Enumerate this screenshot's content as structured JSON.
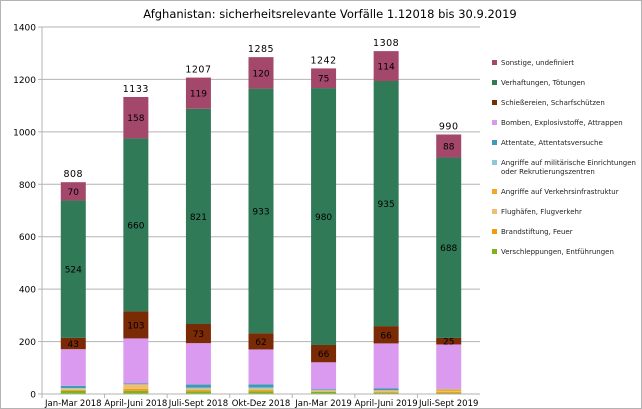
{
  "chart_data": {
    "type": "bar",
    "stacked": true,
    "title": "Afghanistan: sicherheitsrelevante Vorfälle 1.12018 bis 30.9.2019",
    "xlabel": "",
    "ylabel": "",
    "ylim": [
      0,
      1400
    ],
    "yticks": [
      0,
      200,
      400,
      600,
      800,
      1000,
      1200,
      1400
    ],
    "grid": true,
    "legend_position": "right",
    "categories": [
      "Jan-Mar 2018",
      "April-Juni 2018",
      "Juli-Sept 2018",
      "Okt-Dez 2018",
      "Jan-Mar 2019",
      "April-Juni 2019",
      "Juli-Sept 2019"
    ],
    "totals": [
      808,
      1133,
      1207,
      1285,
      1242,
      1308,
      990
    ],
    "series": [
      {
        "name": "Verschleppungen, Entführungen",
        "color": "#7ab31a",
        "values": [
          12,
          12,
          10,
          10,
          8,
          5,
          4
        ],
        "labeled": false
      },
      {
        "name": "Brandstiftung, Feuer",
        "color": "#f29b12",
        "values": [
          4,
          8,
          5,
          5,
          2,
          4,
          4
        ],
        "labeled": false
      },
      {
        "name": "Flughäfen, Flugverkehr",
        "color": "#f0bd72",
        "values": [
          2,
          14,
          3,
          3,
          2,
          2,
          2
        ],
        "labeled": false
      },
      {
        "name": "Angriffe auf Verkehrsinfrastruktur",
        "color": "#f5a623",
        "values": [
          2,
          2,
          2,
          2,
          1,
          2,
          8
        ],
        "labeled": false
      },
      {
        "name": "Angriffe auf militärische Einrichtungen oder Rekrutierungszentren",
        "color": "#8ec6dc",
        "values": [
          3,
          2,
          4,
          5,
          4,
          2,
          1
        ],
        "labeled": false
      },
      {
        "name": "Attentate, Attentatsversuche",
        "color": "#3d9bb5",
        "values": [
          8,
          2,
          12,
          12,
          2,
          6,
          1
        ],
        "labeled": false
      },
      {
        "name": "Bomben, Explosivstoffe, Attrappen",
        "color": "#d99af0",
        "values": [
          140,
          172,
          158,
          133,
          102,
          172,
          169
        ],
        "labeled": false
      },
      {
        "name": "Schießereien, Scharfschützen",
        "color": "#7b2a06",
        "values": [
          43,
          103,
          73,
          62,
          66,
          66,
          25
        ],
        "labeled": true
      },
      {
        "name": "Verhaftungen, Tötungen",
        "color": "#317a57",
        "values": [
          524,
          660,
          821,
          933,
          980,
          935,
          688
        ],
        "labeled": true
      },
      {
        "name": "Sonstige, undefiniert",
        "color": "#a3486b",
        "values": [
          70,
          158,
          119,
          120,
          75,
          114,
          88
        ],
        "labeled": true
      }
    ]
  }
}
